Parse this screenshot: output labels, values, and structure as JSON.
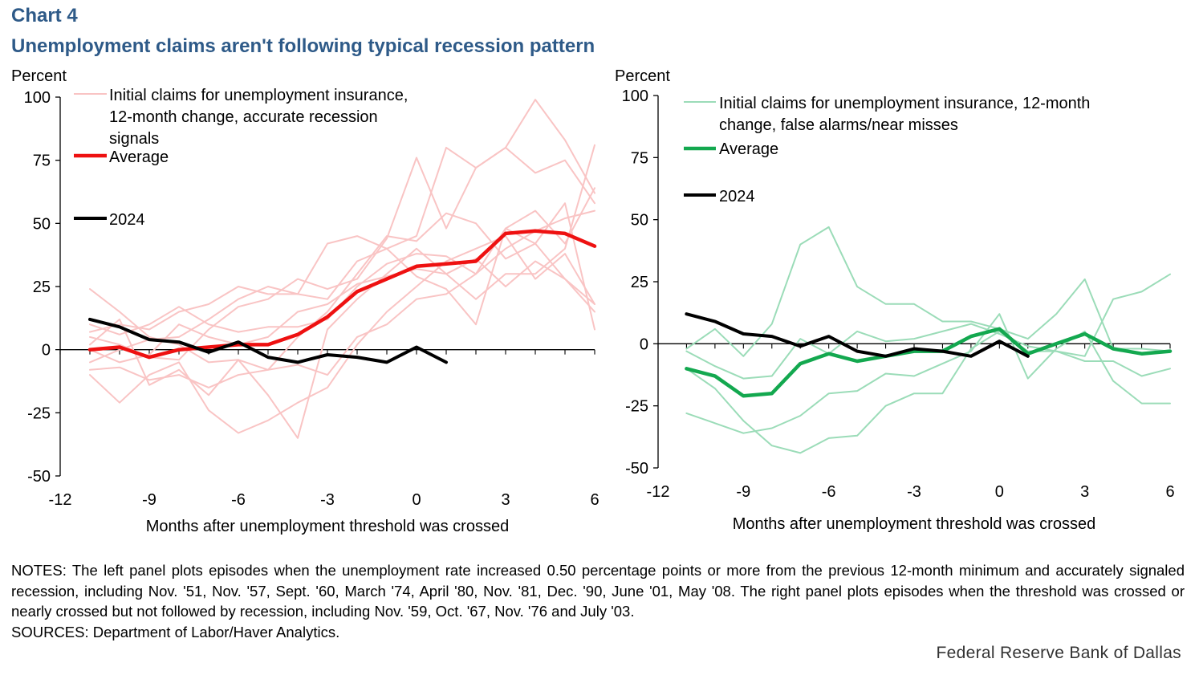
{
  "header": {
    "chart_number": "Chart 4",
    "title": "Unemployment claims aren't following typical recession pattern"
  },
  "notes": {
    "notes_text": "NOTES: The left panel plots episodes when the unemployment rate increased 0.50 percentage points or more from the previous 12-month minimum and accurately signaled recession, including Nov. '51, Nov. '57, Sept. '60, March '74, April '80, Nov. '81, Dec. '90, June '01, May '08. The right panel plots episodes when the threshold was crossed or nearly crossed but not followed by recession, including Nov. '59, Oct. '67, Nov. '76 and July '03.",
    "sources_text": "SOURCES: Department of Labor/Haver Analytics."
  },
  "footer": {
    "credit": "Federal Reserve Bank of Dallas"
  },
  "colors": {
    "left_episodes": "#f9c4c4",
    "left_average": "#ee1111",
    "right_episodes": "#9bdcb8",
    "right_average": "#13a84f",
    "series_2024": "#000000",
    "axis": "#000000",
    "title": "#2e5a88"
  },
  "chart_data": [
    {
      "id": "left",
      "type": "line",
      "ylabel": "Percent",
      "xlabel": "Months after unemployment threshold was crossed",
      "xlim": [
        -12,
        6
      ],
      "ylim": [
        -50,
        100
      ],
      "xticks": [
        -12,
        -9,
        -6,
        -3,
        0,
        3,
        6
      ],
      "yticks": [
        -50,
        -25,
        0,
        25,
        50,
        75,
        100
      ],
      "tick_labels_x": [
        "-12",
        "-9",
        "-6",
        "-3",
        "0",
        "3",
        "6"
      ],
      "tick_labels_y": [
        "-50",
        "-25",
        "0",
        "25",
        "50",
        "75",
        "100"
      ],
      "legend": {
        "episodes": "Initial claims for unemployment insurance, 12-month change, accurate recession signals",
        "episodes_lines": [
          "Initial claims for unemployment insurance,",
          "12-month change, accurate recession",
          "signals"
        ],
        "average": "Average",
        "series_2024": "2024"
      },
      "x": [
        -11,
        -10,
        -9,
        -8,
        -7,
        -6,
        -5,
        -4,
        -3,
        -2,
        -1,
        0,
        1,
        2,
        3,
        4,
        5,
        6
      ],
      "episodes": [
        {
          "name": "Nov. '51",
          "values": [
            24,
            15,
            5,
            2,
            -5,
            -4,
            -8,
            -6,
            -10,
            5,
            10,
            20,
            22,
            30,
            40,
            47,
            52,
            55
          ]
        },
        {
          "name": "Nov. '57",
          "values": [
            7,
            10,
            8,
            15,
            18,
            25,
            22,
            22,
            20,
            35,
            40,
            45,
            80,
            72,
            80,
            99,
            83,
            62
          ]
        },
        {
          "name": "Sept. '60",
          "values": [
            -10,
            -21,
            -10,
            -5,
            -24,
            -33,
            -28,
            -21,
            -15,
            2,
            15,
            25,
            35,
            40,
            45,
            28,
            38,
            18
          ]
        },
        {
          "name": "March '74",
          "values": [
            5,
            2,
            -3,
            -4,
            8,
            17,
            20,
            28,
            24,
            28,
            44,
            76,
            48,
            72,
            80,
            70,
            75,
            58
          ]
        },
        {
          "name": "April '80",
          "values": [
            -8,
            -7,
            -12,
            -10,
            -15,
            -10,
            -8,
            5,
            15,
            30,
            45,
            43,
            54,
            50,
            36,
            42,
            58,
            8
          ]
        },
        {
          "name": "Nov. '81",
          "values": [
            2,
            12,
            -14,
            -8,
            -18,
            -4,
            -18,
            -35,
            8,
            20,
            30,
            40,
            30,
            20,
            30,
            30,
            40,
            81
          ]
        },
        {
          "name": "Dec. '90",
          "values": [
            10,
            6,
            10,
            17,
            10,
            7,
            9,
            9,
            12,
            25,
            34,
            38,
            37,
            30,
            48,
            55,
            42,
            64
          ]
        },
        {
          "name": "June '01",
          "values": [
            -5,
            0,
            4,
            5,
            12,
            20,
            25,
            22,
            42,
            45,
            40,
            29,
            24,
            10,
            48,
            42,
            28,
            18
          ]
        },
        {
          "name": "May '08",
          "values": [
            0,
            -5,
            -2,
            10,
            5,
            2,
            5,
            15,
            18,
            26,
            29,
            32,
            30,
            36,
            25,
            35,
            28,
            15
          ]
        }
      ],
      "average": [
        0,
        1,
        -3,
        0,
        1,
        2,
        2,
        6,
        13,
        23,
        28,
        33,
        34,
        35,
        46,
        47,
        46,
        41
      ],
      "x_2024": [
        -11,
        -10,
        -9,
        -8,
        -7,
        -6,
        -5,
        -4,
        -3,
        -2,
        -1,
        0,
        1
      ],
      "series_2024": [
        12,
        9,
        4,
        3,
        -1,
        3,
        -3,
        -5,
        -2,
        -3,
        -5,
        1,
        -5
      ]
    },
    {
      "id": "right",
      "type": "line",
      "ylabel": "Percent",
      "xlabel": "Months after unemployment threshold was crossed",
      "xlim": [
        -12,
        6
      ],
      "ylim": [
        -50,
        100
      ],
      "xticks": [
        -12,
        -9,
        -6,
        -3,
        0,
        3,
        6
      ],
      "yticks": [
        -50,
        -25,
        0,
        25,
        50,
        75,
        100
      ],
      "tick_labels_x": [
        "-12",
        "-9",
        "-6",
        "-3",
        "0",
        "3",
        "6"
      ],
      "tick_labels_y": [
        "-50",
        "-25",
        "0",
        "25",
        "50",
        "75",
        "100"
      ],
      "legend": {
        "episodes": "Initial claims for unemployment insurance, 12-month change, false alarms/near misses",
        "episodes_lines": [
          "Initial claims for unemployment insurance, 12-month",
          "change, false alarms/near misses"
        ],
        "average": "Average",
        "series_2024": "2024"
      },
      "x": [
        -11,
        -10,
        -9,
        -8,
        -7,
        -6,
        -5,
        -4,
        -3,
        -2,
        -1,
        0,
        1,
        2,
        3,
        4,
        5,
        6
      ],
      "episodes": [
        {
          "name": "Nov. '59",
          "values": [
            -2,
            6,
            -5,
            8,
            40,
            47,
            23,
            16,
            16,
            9,
            9,
            6,
            2,
            12,
            26,
            -2,
            -2,
            -3
          ]
        },
        {
          "name": "Oct. '67",
          "values": [
            -28,
            -32,
            -36,
            -34,
            -29,
            -20,
            -19,
            -12,
            -13,
            -8,
            -3,
            12,
            -14,
            -2,
            5,
            -15,
            -24,
            -24
          ]
        },
        {
          "name": "Nov. '76",
          "values": [
            -10,
            -18,
            -31,
            -41,
            -44,
            -38,
            -37,
            -25,
            -20,
            -20,
            -2,
            5,
            -3,
            -3,
            -7,
            -7,
            -13,
            -10
          ]
        },
        {
          "name": "July '03",
          "values": [
            -3,
            -9,
            -14,
            -13,
            2,
            -4,
            5,
            1,
            2,
            5,
            8,
            4,
            -1,
            -3,
            -5,
            18,
            21,
            28
          ]
        }
      ],
      "average": [
        -10,
        -13,
        -21,
        -20,
        -8,
        -4,
        -7,
        -5,
        -3,
        -3,
        3,
        6,
        -4,
        0,
        4,
        -2,
        -4,
        -3
      ],
      "x_2024": [
        -11,
        -10,
        -9,
        -8,
        -7,
        -6,
        -5,
        -4,
        -3,
        -2,
        -1,
        0,
        1
      ],
      "series_2024": [
        12,
        9,
        4,
        3,
        -1,
        3,
        -3,
        -5,
        -2,
        -3,
        -5,
        1,
        -5
      ]
    }
  ]
}
